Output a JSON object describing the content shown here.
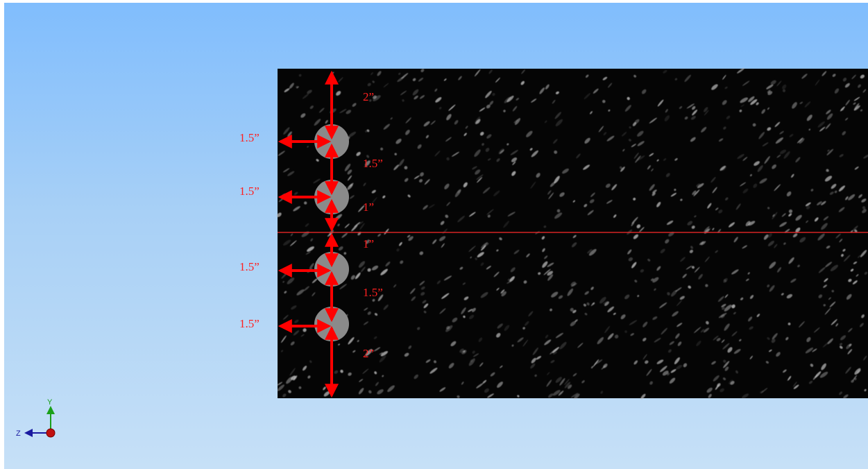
{
  "section": {
    "colors": {
      "concrete": "#050505",
      "aggregate": "#bdbdbd",
      "centerline": "#ff2a2a",
      "dimension": "#ff0000",
      "rebar": "#8a8a8a",
      "background_top": "#80bdfd",
      "background_bottom": "#c6e0f7"
    },
    "units": "in",
    "rebars": [
      {
        "id": "bar-1"
      },
      {
        "id": "bar-2"
      },
      {
        "id": "bar-3"
      },
      {
        "id": "bar-4"
      }
    ],
    "dimensions": {
      "vertical": [
        "2”",
        "1.5”",
        "1”",
        "1”",
        "1.5”",
        "2”"
      ],
      "horizontal": [
        "1.5”",
        "1.5”",
        "1.5”",
        "1.5”"
      ]
    }
  },
  "triad": {
    "y_label": "Y",
    "z_label": "Z",
    "y_color": "#1aa01a",
    "z_color": "#1a1aa0",
    "x_color": "#c01010"
  }
}
